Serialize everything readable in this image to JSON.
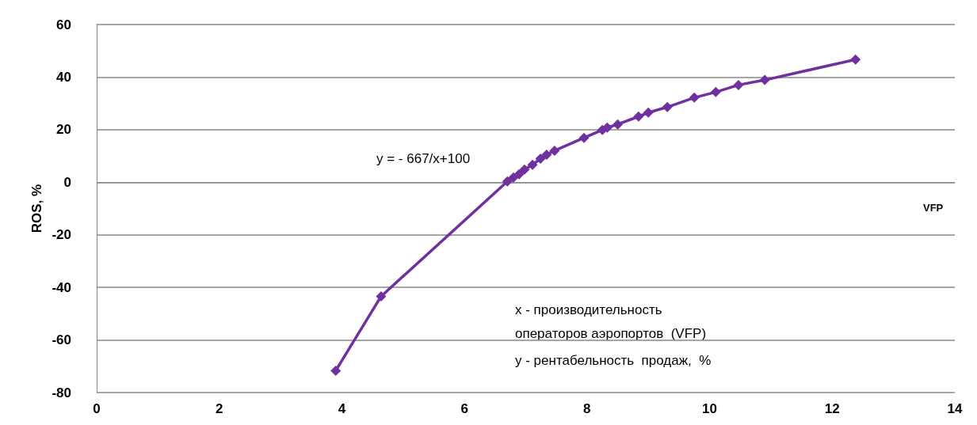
{
  "chart_data": {
    "type": "line",
    "xlabel": "VFP",
    "ylabel": "ROS, %",
    "xlim": [
      0,
      14
    ],
    "xticks": [
      0,
      2,
      4,
      6,
      8,
      10,
      12,
      14
    ],
    "ylim": [
      -80,
      60
    ],
    "yticks": [
      -80,
      -60,
      -40,
      -20,
      0,
      20,
      40,
      60
    ],
    "grid": "y",
    "marker": "diamond",
    "line_style": "solid",
    "series": [
      {
        "color": "#7030a0",
        "x": [
          3.9,
          4.64,
          6.7,
          6.8,
          6.89,
          6.98,
          7.11,
          7.24,
          7.34,
          7.47,
          7.95,
          8.25,
          8.33,
          8.5,
          8.84,
          9.0,
          9.31,
          9.75,
          10.1,
          10.47,
          10.9,
          12.38
        ],
        "values": [
          -71.7,
          -43.4,
          0.3,
          1.8,
          3,
          4.8,
          6.6,
          9,
          10.5,
          12,
          16.9,
          19.9,
          20.8,
          22,
          25,
          26.5,
          28.6,
          32.2,
          34.3,
          37,
          38.9,
          46.7
        ]
      }
    ],
    "annotations": [
      "y = - 667/x+100",
      "x - производительность  операторов аэропортов  (VFP)",
      "y - рентабельность  продаж,  %"
    ]
  }
}
